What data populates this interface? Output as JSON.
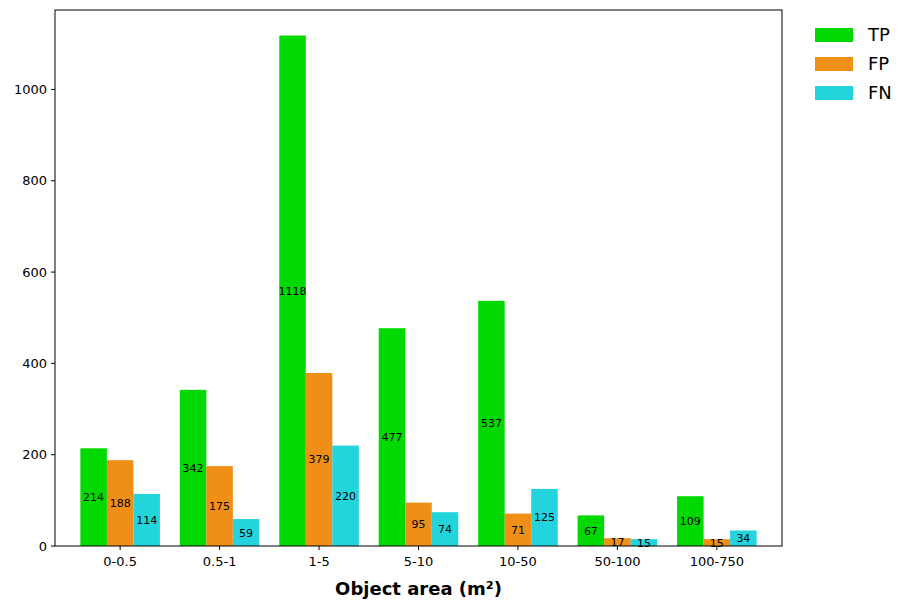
{
  "chart_data": {
    "type": "bar",
    "x_label": "Object area (m²)",
    "categories": [
      "0-0.5",
      "0.5-1",
      "1-5",
      "5-10",
      "10-50",
      "50-100",
      "100-750"
    ],
    "series": [
      {
        "name": "TP",
        "color": "#02d802",
        "values": [
          214,
          342,
          1118,
          477,
          537,
          67,
          109
        ]
      },
      {
        "name": "FP",
        "color": "#ef8f17",
        "values": [
          188,
          175,
          379,
          95,
          71,
          17,
          15
        ]
      },
      {
        "name": "FN",
        "color": "#24d4dc",
        "values": [
          114,
          59,
          220,
          74,
          125,
          15,
          34
        ]
      }
    ],
    "ylim": [
      0,
      1174
    ],
    "yticks": [
      0,
      200,
      400,
      600,
      800,
      1000
    ],
    "grid": false,
    "data_labels": true,
    "legend": "outside upper right"
  }
}
